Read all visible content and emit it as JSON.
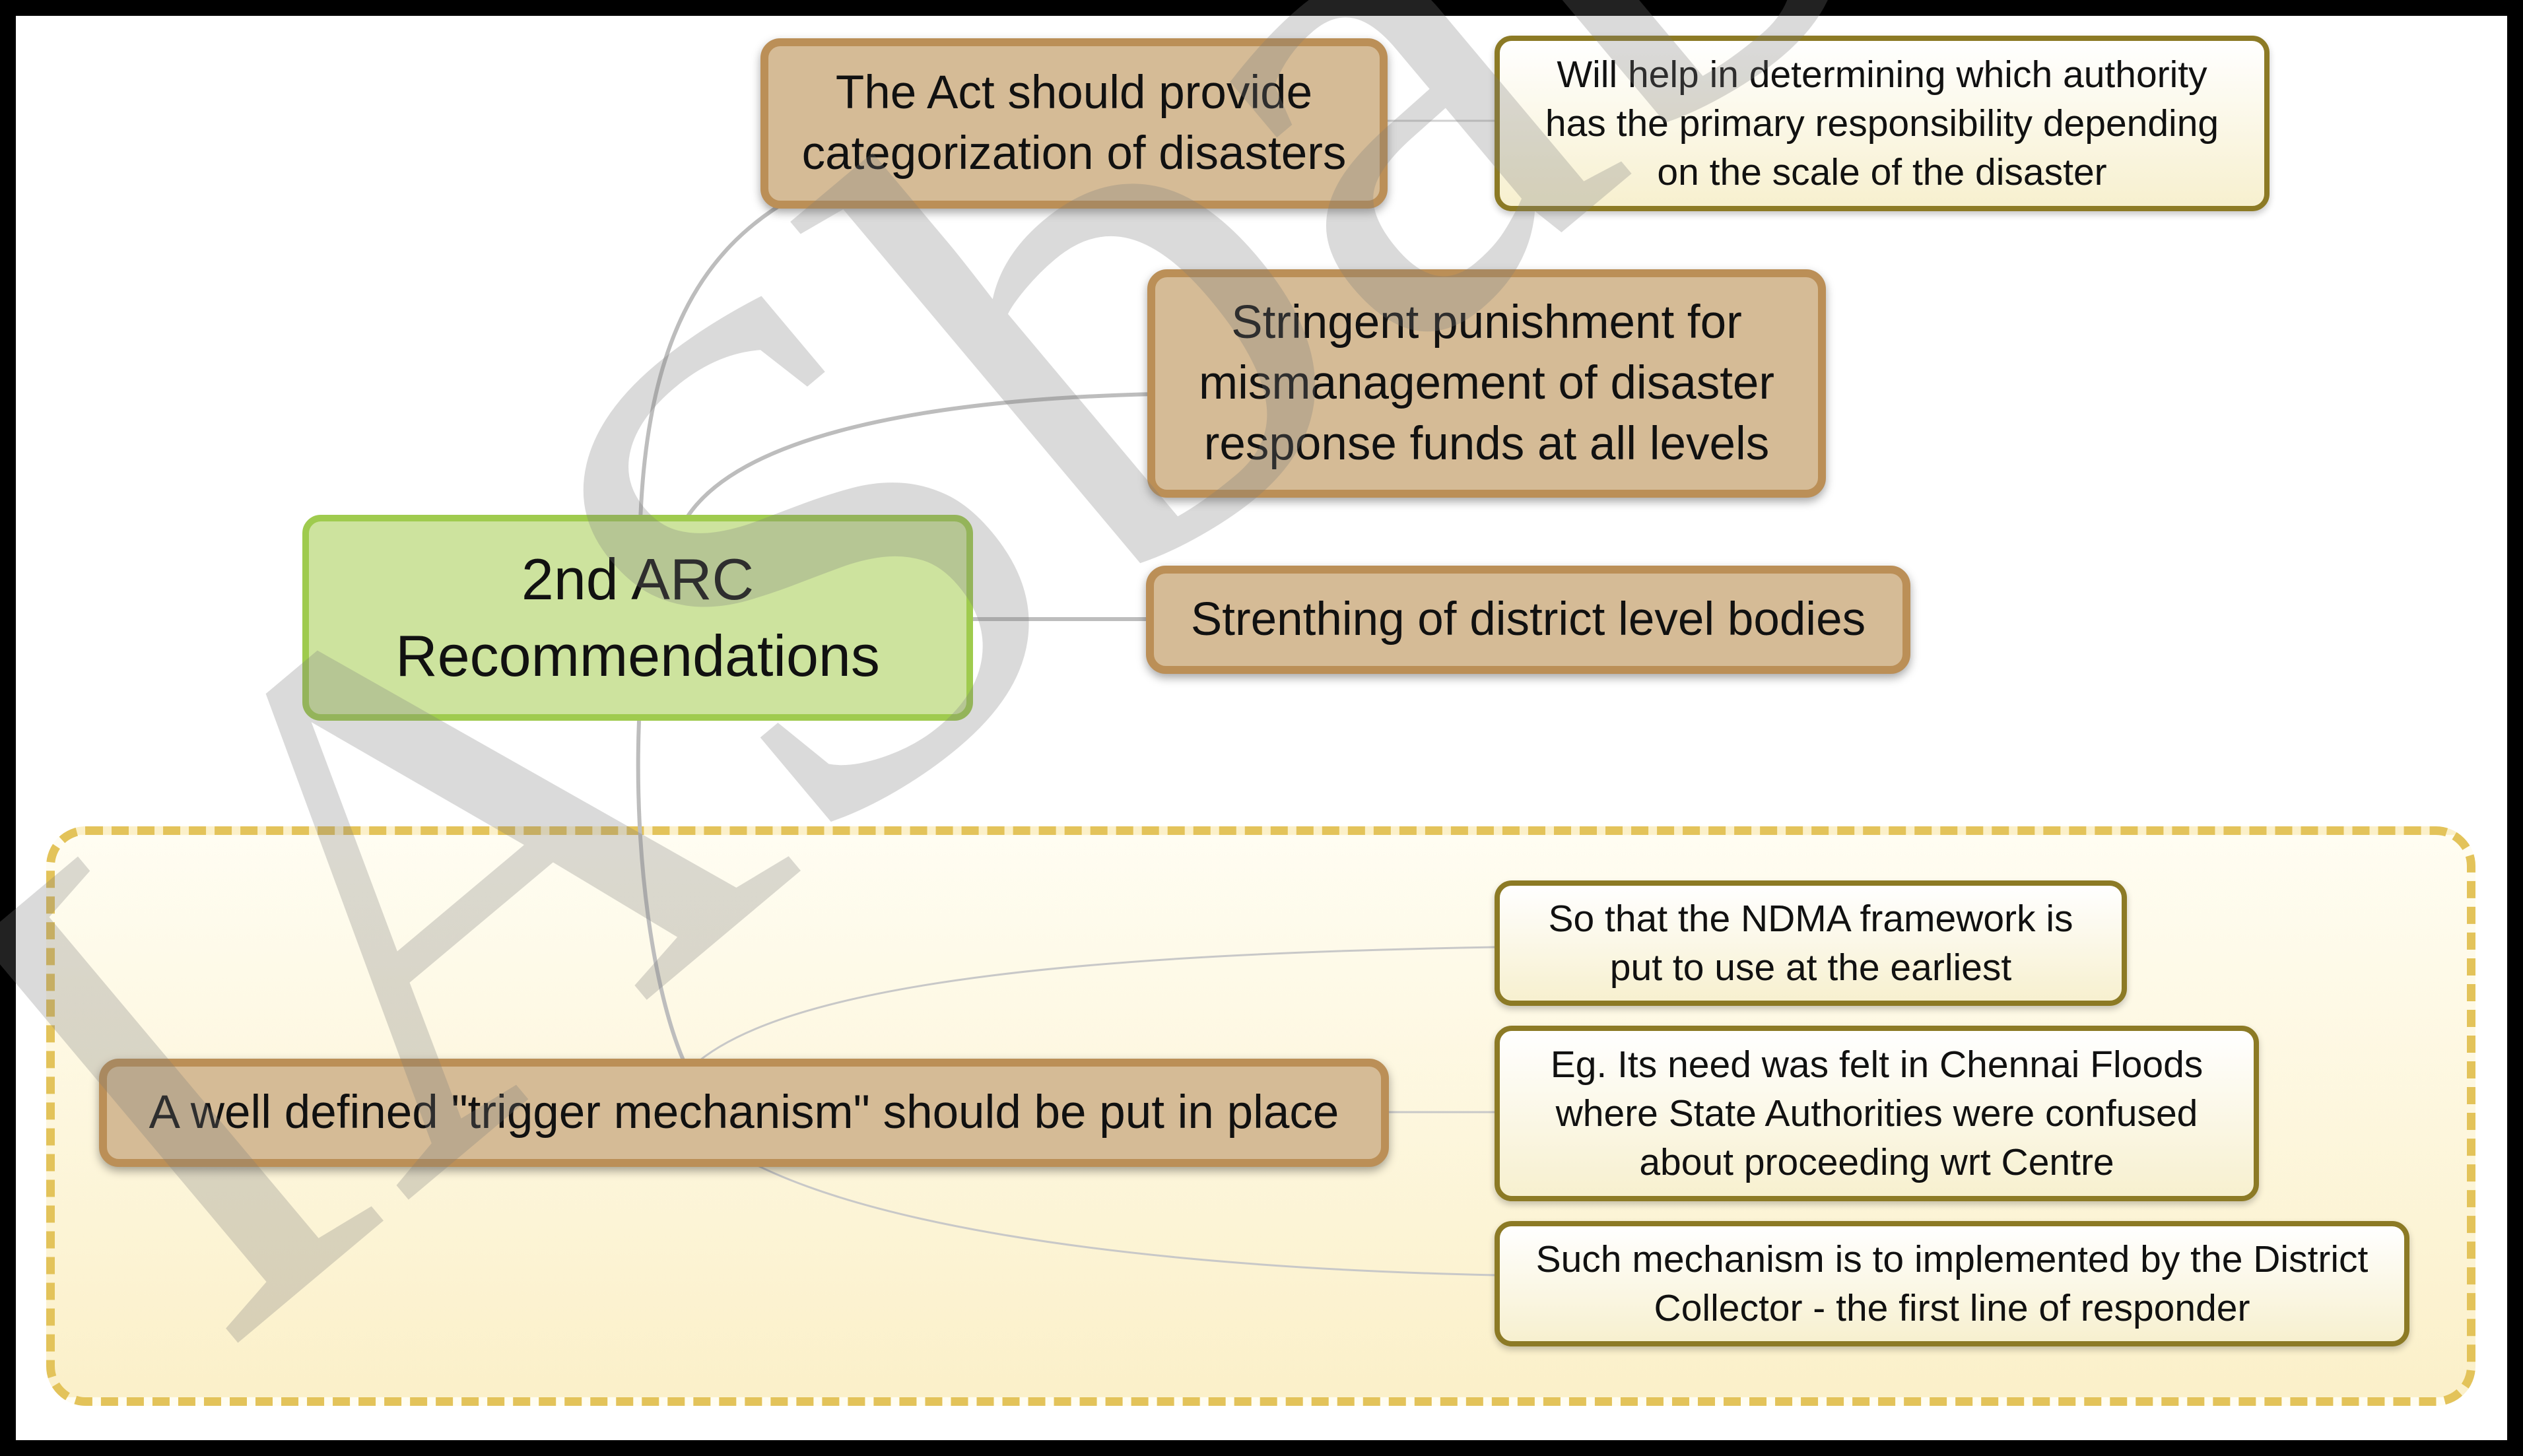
{
  "central": {
    "line1": "2nd ARC",
    "line2": "Recommendations"
  },
  "branches": {
    "categorization": "The Act should provide categorization of disasters",
    "punishment": "Stringent punishment for mismanagement of disaster response funds at all levels",
    "district_bodies": "Strenthing of district level bodies",
    "trigger": "A well defined \"trigger mechanism\" should be put in place"
  },
  "notes": {
    "categorization_note": "Will help in determining which authority has the primary responsibility depending on the scale of the disaster",
    "trigger_note_1": "So that the NDMA framework is put to use at the earliest",
    "trigger_note_2": "Eg. Its need was felt in Chennai Floods where State Authorities were confused about proceeding wrt Centre",
    "trigger_note_3": "Such mechanism is to implemented by the District Collector - the first line of responder"
  },
  "watermark": "IASbaba",
  "colors": {
    "central_fill": "#cde39e",
    "central_border": "#9fcb4e",
    "branch_fill": "#d5bb96",
    "branch_border": "#bb8f57",
    "note_border": "#8c7a25",
    "group_border": "#e3c35a",
    "connector": "#bdbdbd",
    "watermark": "#d6d6d6"
  }
}
